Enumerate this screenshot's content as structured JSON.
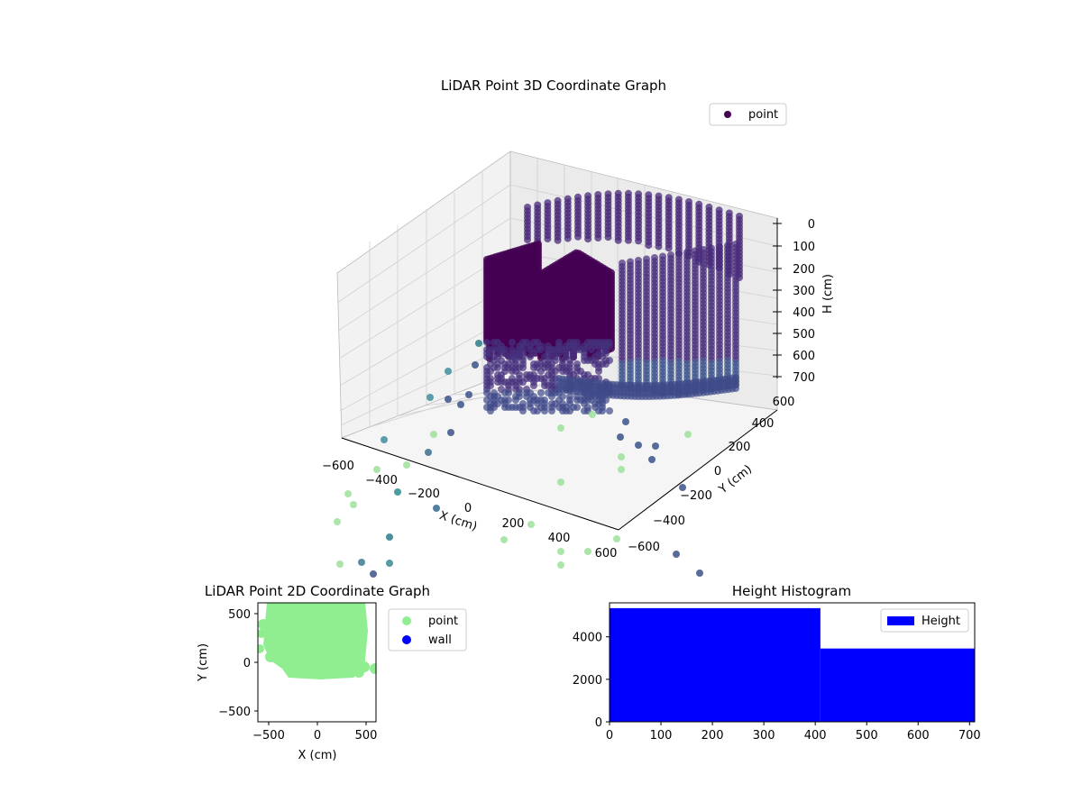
{
  "chart_data": [
    {
      "type": "scatter",
      "title": "LiDAR Point 3D Coordinate Graph",
      "xlabel": "X (cm)",
      "ylabel": "Y (cm)",
      "zlabel": "H (cm)",
      "x_ticks": [
        "−600",
        "−400",
        "−200",
        "0",
        "200",
        "400",
        "600"
      ],
      "y_ticks": [
        "−600",
        "−400",
        "−200",
        "0",
        "200",
        "400",
        "600"
      ],
      "z_ticks": [
        "0",
        "100",
        "200",
        "300",
        "400",
        "500",
        "600",
        "700"
      ],
      "xlim": [
        -600,
        600
      ],
      "ylim": [
        -600,
        600
      ],
      "zlim": [
        700,
        0
      ],
      "legend": {
        "position": "top-right",
        "entries": [
          {
            "name": "point",
            "color": "#440154"
          }
        ]
      },
      "colormap": "viridis",
      "grid": true
    },
    {
      "type": "scatter",
      "title": "LiDAR Point 2D Coordinate Graph",
      "xlabel": "X (cm)",
      "ylabel": "Y (cm)",
      "x_ticks": [
        "−500",
        "0",
        "500"
      ],
      "y_ticks": [
        "500",
        "0",
        "−500"
      ],
      "xlim": [
        -600,
        600
      ],
      "ylim": [
        -600,
        600
      ],
      "legend": {
        "position": "outside-right",
        "entries": [
          {
            "name": "point",
            "color": "#90ee90"
          },
          {
            "name": "wall",
            "color": "#0000ff"
          }
        ]
      }
    },
    {
      "type": "bar",
      "title": "Height Histogram",
      "bins": [
        {
          "start": 0,
          "end": 410,
          "count": 5350
        },
        {
          "start": 410,
          "end": 710,
          "count": 3450
        }
      ],
      "x_ticks": [
        "0",
        "100",
        "200",
        "300",
        "400",
        "500",
        "600",
        "700"
      ],
      "y_ticks": [
        "0",
        "2000",
        "4000"
      ],
      "xlim": [
        0,
        710
      ],
      "ylim": [
        0,
        5600
      ],
      "legend": {
        "position": "top-right",
        "entries": [
          {
            "name": "Height",
            "color": "#0000ff"
          }
        ]
      },
      "color": "#0000ff"
    }
  ]
}
